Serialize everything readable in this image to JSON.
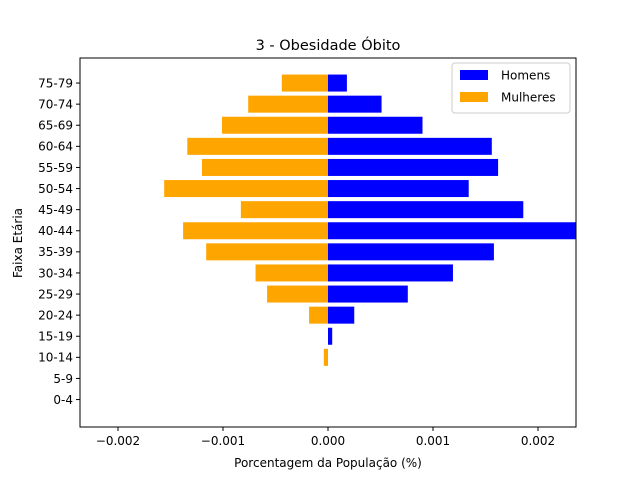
{
  "chart_data": {
    "type": "bar",
    "orientation": "horizontal",
    "title": "3 - Obesidade Óbito",
    "xlabel": "Porcentagem da População (%)",
    "ylabel": "Faixa Etária",
    "xlim": [
      -0.0023,
      0.0023
    ],
    "x_ticks": [
      -0.002,
      -0.001,
      0.0,
      0.001,
      0.002
    ],
    "x_tick_labels": [
      "−0.002",
      "−0.001",
      "0.000",
      "0.001",
      "0.002"
    ],
    "categories": [
      "0-4",
      "5-9",
      "10-14",
      "15-19",
      "20-24",
      "25-29",
      "30-34",
      "35-39",
      "40-44",
      "45-49",
      "50-54",
      "55-59",
      "60-64",
      "65-69",
      "70-74",
      "75-79"
    ],
    "series": [
      {
        "name": "Homens",
        "color": "#0000ff",
        "values": [
          0,
          0,
          0,
          4e-05,
          0.00025,
          0.00076,
          0.00119,
          0.00158,
          0.0024,
          0.00186,
          0.00134,
          0.00162,
          0.00156,
          0.0009,
          0.00051,
          0.00018
        ]
      },
      {
        "name": "Mulheres",
        "color": "#ffa500",
        "values": [
          0,
          0,
          -4e-05,
          0,
          -0.00018,
          -0.00058,
          -0.00069,
          -0.00116,
          -0.00138,
          -0.00083,
          -0.00156,
          -0.0012,
          -0.00134,
          -0.00101,
          -0.00076,
          -0.00044
        ]
      }
    ],
    "legend_position": "top-right",
    "grid": false
  }
}
